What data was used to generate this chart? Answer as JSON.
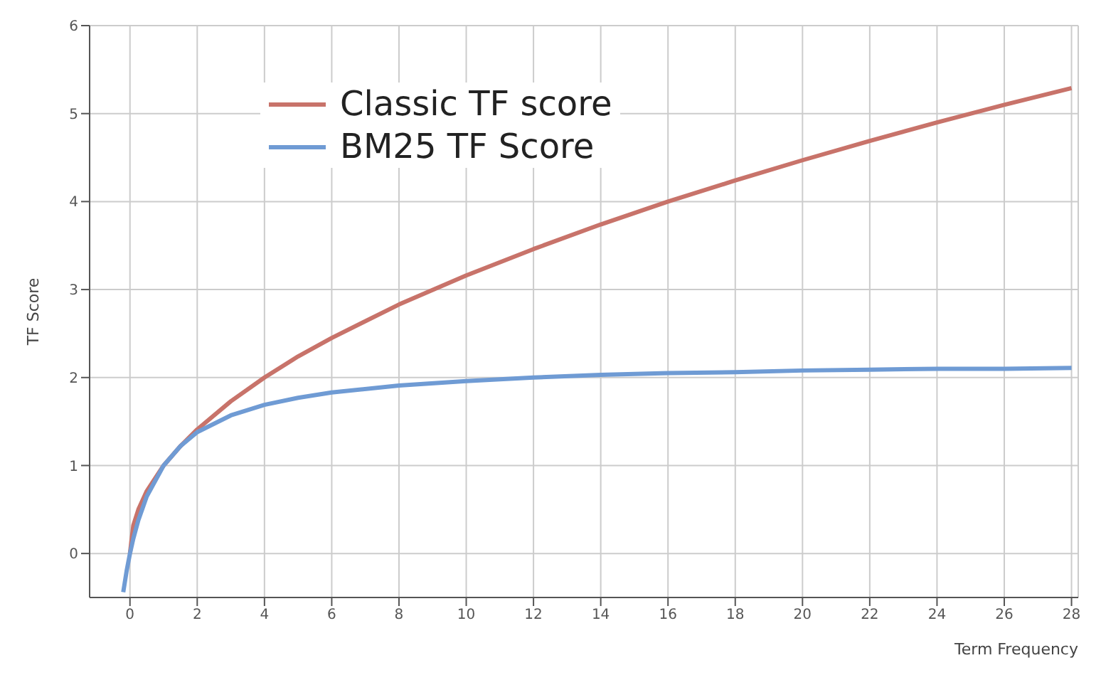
{
  "chart_data": {
    "type": "line",
    "xlabel": "Term Frequency",
    "ylabel": "TF Score",
    "xlim": [
      -1.2,
      28.2
    ],
    "ylim": [
      -0.5,
      6
    ],
    "xticks": [
      0,
      2,
      4,
      6,
      8,
      10,
      12,
      14,
      16,
      18,
      20,
      22,
      24,
      26,
      28
    ],
    "yticks": [
      0,
      1,
      2,
      3,
      4,
      5,
      6
    ],
    "grid": true,
    "legend": "top left",
    "marker": "none",
    "line_style": "solid",
    "series": [
      {
        "name": "Classic TF score",
        "color": "#c8736a",
        "x": [
          0,
          0.1,
          0.25,
          0.5,
          1,
          1.5,
          2,
          3,
          4,
          5,
          6,
          8,
          10,
          12,
          14,
          16,
          18,
          20,
          22,
          24,
          26,
          28
        ],
        "values": [
          0,
          0.32,
          0.5,
          0.71,
          1,
          1.22,
          1.41,
          1.73,
          2,
          2.24,
          2.45,
          2.83,
          3.16,
          3.46,
          3.74,
          4,
          4.24,
          4.47,
          4.69,
          4.9,
          5.1,
          5.29
        ]
      },
      {
        "name": "BM25 TF Score",
        "color": "#6f9bd4",
        "x": [
          -0.2,
          -0.1,
          0,
          0.1,
          0.25,
          0.5,
          1,
          1.5,
          2,
          3,
          4,
          5,
          6,
          8,
          10,
          12,
          14,
          16,
          18,
          20,
          22,
          24,
          26,
          28
        ],
        "values": [
          -0.44,
          -0.2,
          0,
          0.17,
          0.38,
          0.65,
          1,
          1.22,
          1.38,
          1.57,
          1.69,
          1.77,
          1.83,
          1.91,
          1.96,
          2,
          2.03,
          2.05,
          2.06,
          2.08,
          2.09,
          2.1,
          2.1,
          2.11
        ]
      }
    ]
  }
}
